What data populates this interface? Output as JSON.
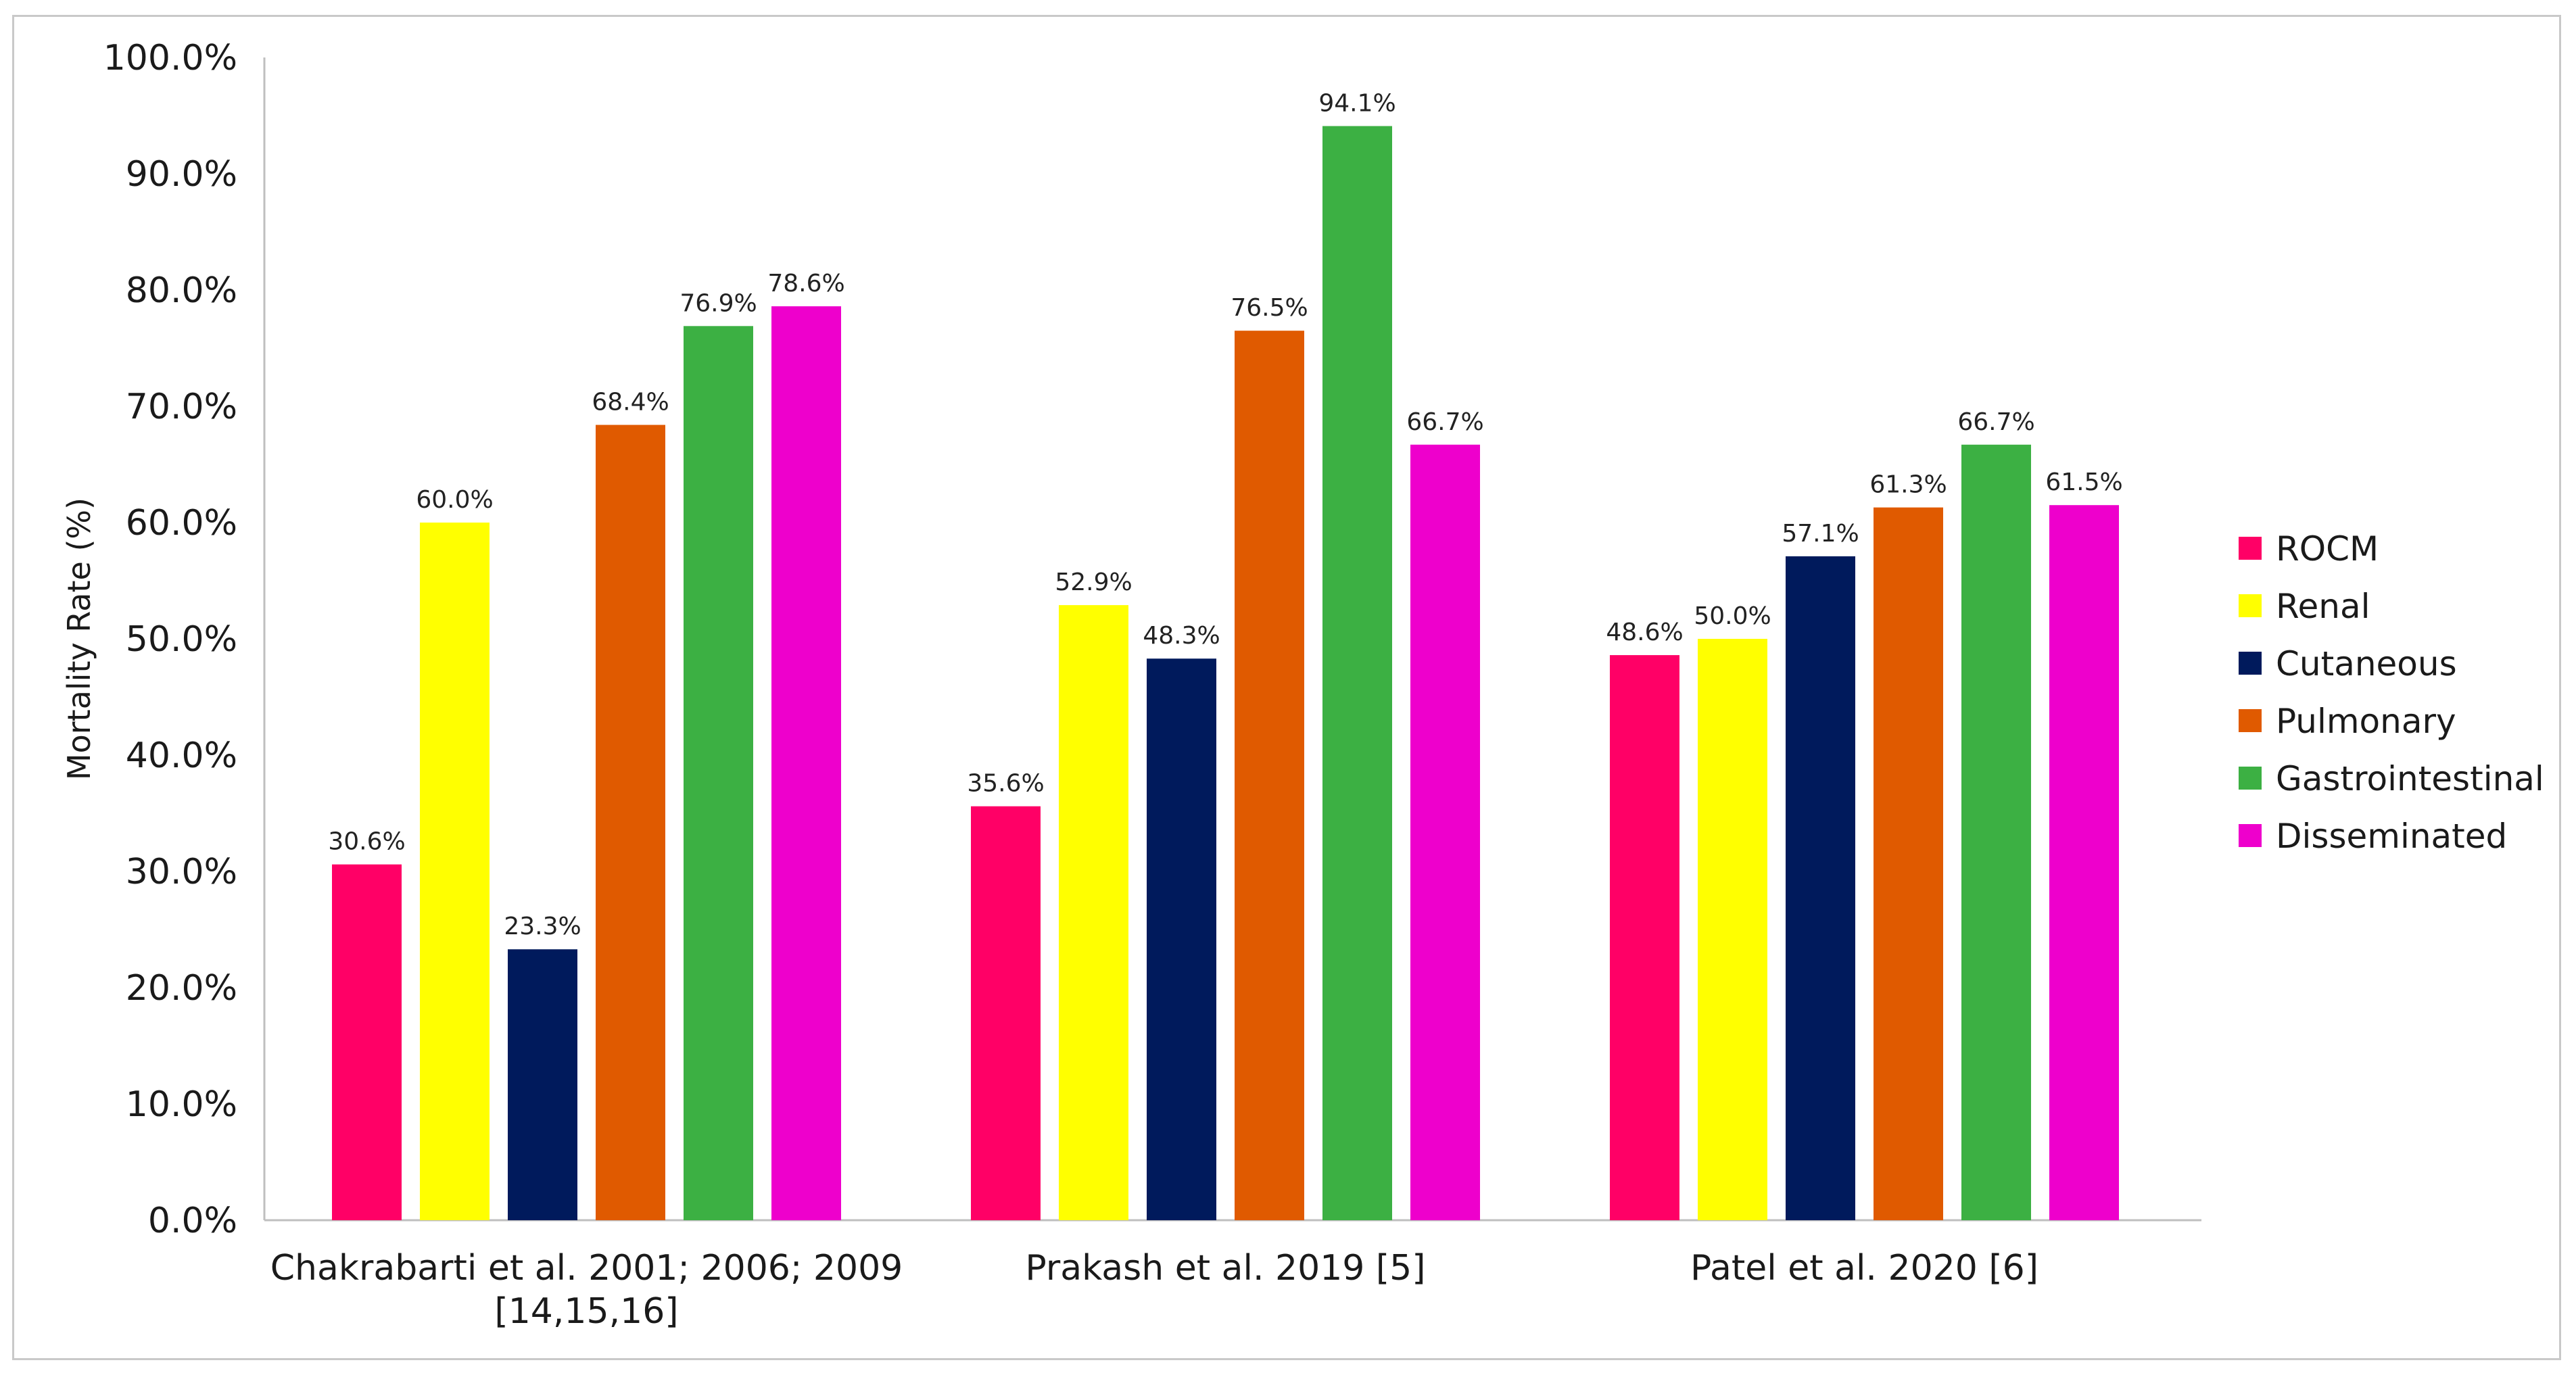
{
  "chart_data": {
    "type": "bar",
    "title": "",
    "xlabel": "",
    "ylabel": "Mortality Rate (%)",
    "ylim": [
      0,
      100
    ],
    "yticks": [
      "0.0%",
      "10.0%",
      "20.0%",
      "30.0%",
      "40.0%",
      "50.0%",
      "60.0%",
      "70.0%",
      "80.0%",
      "90.0%",
      "100.0%"
    ],
    "grid": false,
    "legend_position": "right",
    "categories": [
      [
        "Chakrabarti et al. 2001; 2006; 2009",
        "[14,15,16]"
      ],
      [
        "Prakash et al. 2019 [5]"
      ],
      [
        "Patel et al. 2020 [6]"
      ]
    ],
    "series": [
      {
        "name": "ROCM",
        "color": "#ff0066",
        "values": [
          30.6,
          35.6,
          48.6
        ],
        "labels": [
          "30.6%",
          "35.6%",
          "48.6%"
        ]
      },
      {
        "name": "Renal",
        "color": "#ffff00",
        "values": [
          60.0,
          52.9,
          50.0
        ],
        "labels": [
          "60.0%",
          "52.9%",
          "50.0%"
        ]
      },
      {
        "name": "Cutaneous",
        "color": "#001a5c",
        "values": [
          23.3,
          48.3,
          57.1
        ],
        "labels": [
          "23.3%",
          "48.3%",
          "57.1%"
        ]
      },
      {
        "name": "Pulmonary",
        "color": "#e05a00",
        "values": [
          68.4,
          76.5,
          61.3
        ],
        "labels": [
          "68.4%",
          "76.5%",
          "61.3%"
        ]
      },
      {
        "name": "Gastrointestinal",
        "color": "#3cb043",
        "values": [
          76.9,
          94.1,
          66.7
        ],
        "labels": [
          "76.9%",
          "94.1%",
          "66.7%"
        ]
      },
      {
        "name": "Disseminated",
        "color": "#ee00cc",
        "values": [
          78.6,
          66.7,
          61.5
        ],
        "labels": [
          "78.6%",
          "66.7%",
          "61.5%"
        ]
      }
    ],
    "axis_color": "#bfbfbf"
  }
}
